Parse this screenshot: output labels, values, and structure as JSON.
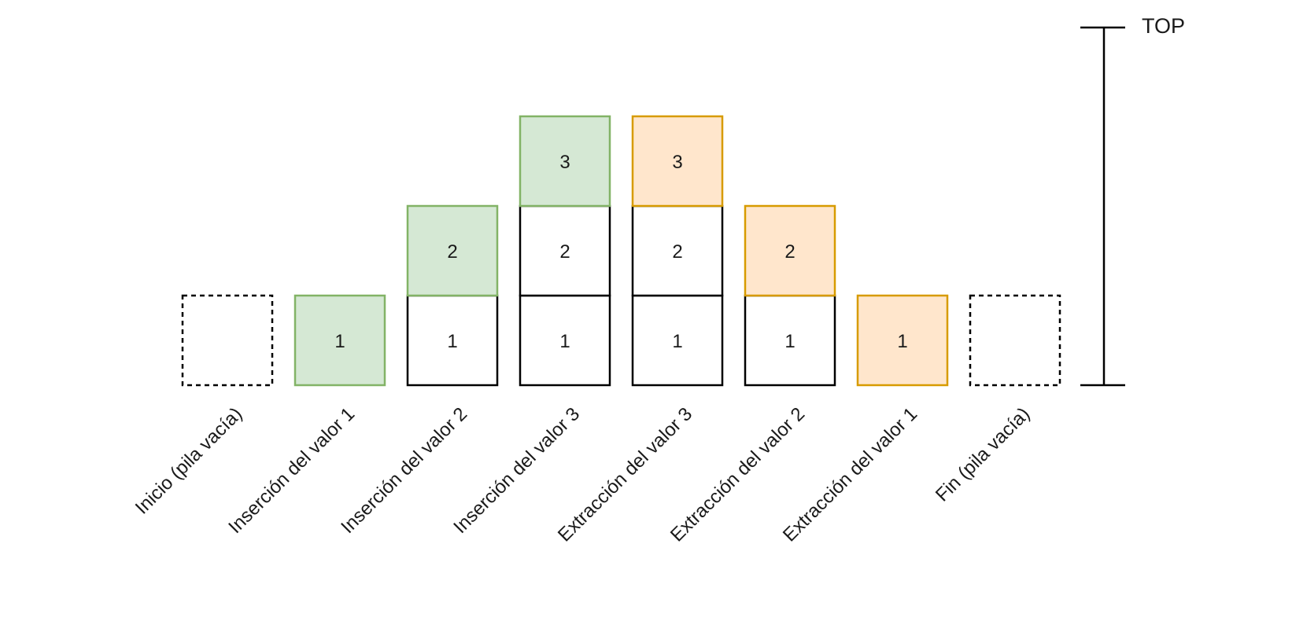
{
  "top_label": "TOP",
  "colors": {
    "push_fill": "#d5e8d4",
    "push_stroke": "#82b366",
    "pop_fill": "#ffe6cc",
    "pop_stroke": "#d79b00",
    "normal_fill": "#ffffff",
    "normal_stroke": "#000000",
    "empty_stroke": "#000000"
  },
  "steps": [
    {
      "label": "Inicio (pila vacía)",
      "cells": [
        {
          "value": "",
          "style": "empty"
        }
      ]
    },
    {
      "label": "Inserción del valor 1",
      "cells": [
        {
          "value": "1",
          "style": "push"
        }
      ]
    },
    {
      "label": "Inserción del valor 2",
      "cells": [
        {
          "value": "1",
          "style": "normal"
        },
        {
          "value": "2",
          "style": "push"
        }
      ]
    },
    {
      "label": "Inserción del valor 3",
      "cells": [
        {
          "value": "1",
          "style": "normal"
        },
        {
          "value": "2",
          "style": "normal"
        },
        {
          "value": "3",
          "style": "push"
        }
      ]
    },
    {
      "label": "Extracción del valor 3",
      "cells": [
        {
          "value": "1",
          "style": "normal"
        },
        {
          "value": "2",
          "style": "normal"
        },
        {
          "value": "3",
          "style": "pop"
        }
      ]
    },
    {
      "label": "Extracción del valor 2",
      "cells": [
        {
          "value": "1",
          "style": "normal"
        },
        {
          "value": "2",
          "style": "pop"
        }
      ]
    },
    {
      "label": "Extracción del valor 1",
      "cells": [
        {
          "value": "1",
          "style": "pop"
        }
      ]
    },
    {
      "label": "Fin (pila vacía)",
      "cells": [
        {
          "value": "",
          "style": "empty"
        }
      ]
    }
  ]
}
